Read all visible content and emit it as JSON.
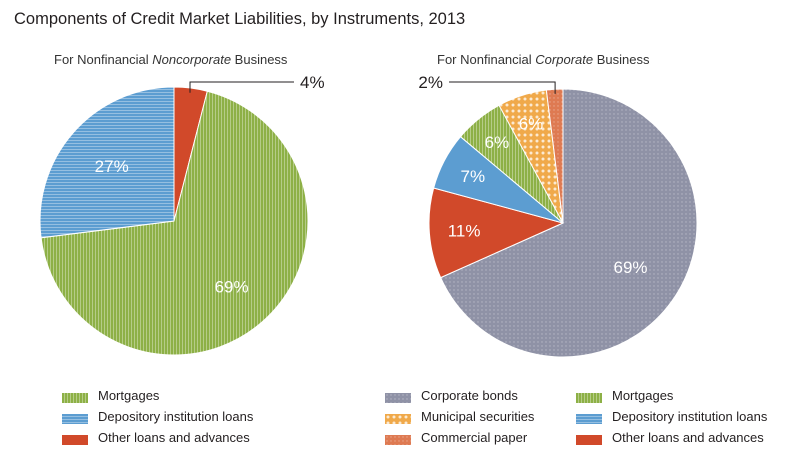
{
  "title": "Components of Credit Market Liabilities, by Instruments, 2013",
  "chart_data": [
    {
      "type": "pie",
      "subtitle_prefix": "For Nonfinancial ",
      "subtitle_emph": "Noncorporate",
      "subtitle_suffix": " Business",
      "slices": [
        {
          "label": "Other loans and advances",
          "value": 4,
          "display": "4%",
          "color": "#d1492a",
          "pattern": "solid"
        },
        {
          "label": "Mortgages",
          "value": 69,
          "display": "69%",
          "color": "#8db046",
          "pattern": "vstripe"
        },
        {
          "label": "Depository institution loans",
          "value": 27,
          "display": "27%",
          "color": "#5c9dd1",
          "pattern": "hstripe"
        }
      ],
      "legend": [
        {
          "label": "Mortgages",
          "color": "#8db046",
          "pattern": "vstripe"
        },
        {
          "label": "Depository institution loans",
          "color": "#5c9dd1",
          "pattern": "hstripe"
        },
        {
          "label": "Other loans and advances",
          "color": "#d1492a",
          "pattern": "solid"
        }
      ]
    },
    {
      "type": "pie",
      "subtitle_prefix": "For Nonfinancial ",
      "subtitle_emph": "Corporate",
      "subtitle_suffix": " Business",
      "slices": [
        {
          "label": "Corporate bonds",
          "value": 69,
          "display": "69%",
          "color": "#8f92a6",
          "pattern": "dots"
        },
        {
          "label": "Other loans and advances",
          "value": 11,
          "display": "11%",
          "color": "#d1492a",
          "pattern": "solid"
        },
        {
          "label": "Depository institution loans",
          "value": 7,
          "display": "7%",
          "color": "#5c9dd1",
          "pattern": "solid"
        },
        {
          "label": "Mortgages",
          "value": 6,
          "display": "6%",
          "color": "#8db046",
          "pattern": "vstripe"
        },
        {
          "label": "Municipal securities",
          "value": 6,
          "display": "6%",
          "color": "#f0a94a",
          "pattern": "bigdots"
        },
        {
          "label": "Commercial paper",
          "value": 2,
          "display": "2%",
          "color": "#de7a52",
          "pattern": "dots"
        }
      ],
      "legend": [
        {
          "label": "Corporate bonds",
          "color": "#8f92a6",
          "pattern": "dots"
        },
        {
          "label": "Municipal securities",
          "color": "#f0a94a",
          "pattern": "bigdots"
        },
        {
          "label": "Commercial paper",
          "color": "#de7a52",
          "pattern": "dots"
        },
        {
          "label": "Mortgages",
          "color": "#8db046",
          "pattern": "vstripe"
        },
        {
          "label": "Depository institution loans",
          "color": "#5c9dd1",
          "pattern": "hstripe"
        },
        {
          "label": "Other loans and advances",
          "color": "#d1492a",
          "pattern": "solid"
        }
      ]
    }
  ]
}
